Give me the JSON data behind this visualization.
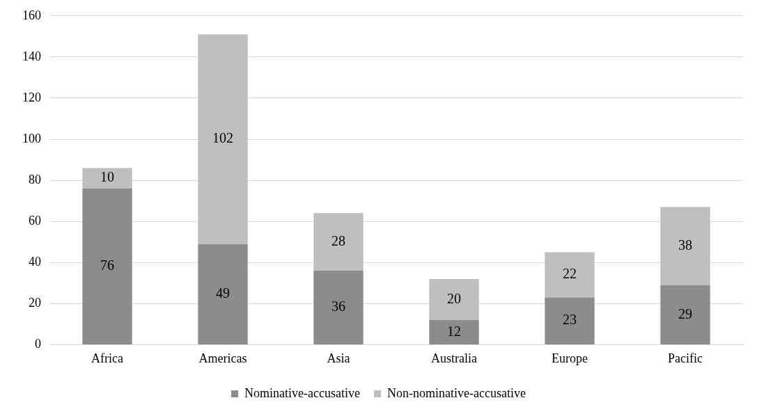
{
  "chart_data": {
    "type": "bar",
    "stacked": true,
    "categories": [
      "Africa",
      "Americas",
      "Asia",
      "Australia",
      "Europe",
      "Pacific"
    ],
    "series": [
      {
        "name": "Nominative-accusative",
        "color": "#8c8c8c",
        "values": [
          76,
          49,
          36,
          12,
          23,
          29
        ]
      },
      {
        "name": "Non-nominative-accusative",
        "color": "#bfbfbf",
        "values": [
          10,
          102,
          28,
          20,
          22,
          38
        ]
      }
    ],
    "ylim": [
      0,
      160
    ],
    "yticks": [
      0,
      20,
      40,
      60,
      80,
      100,
      120,
      140,
      160
    ],
    "grid": "y",
    "legend": "bottom",
    "data_labels": true
  }
}
